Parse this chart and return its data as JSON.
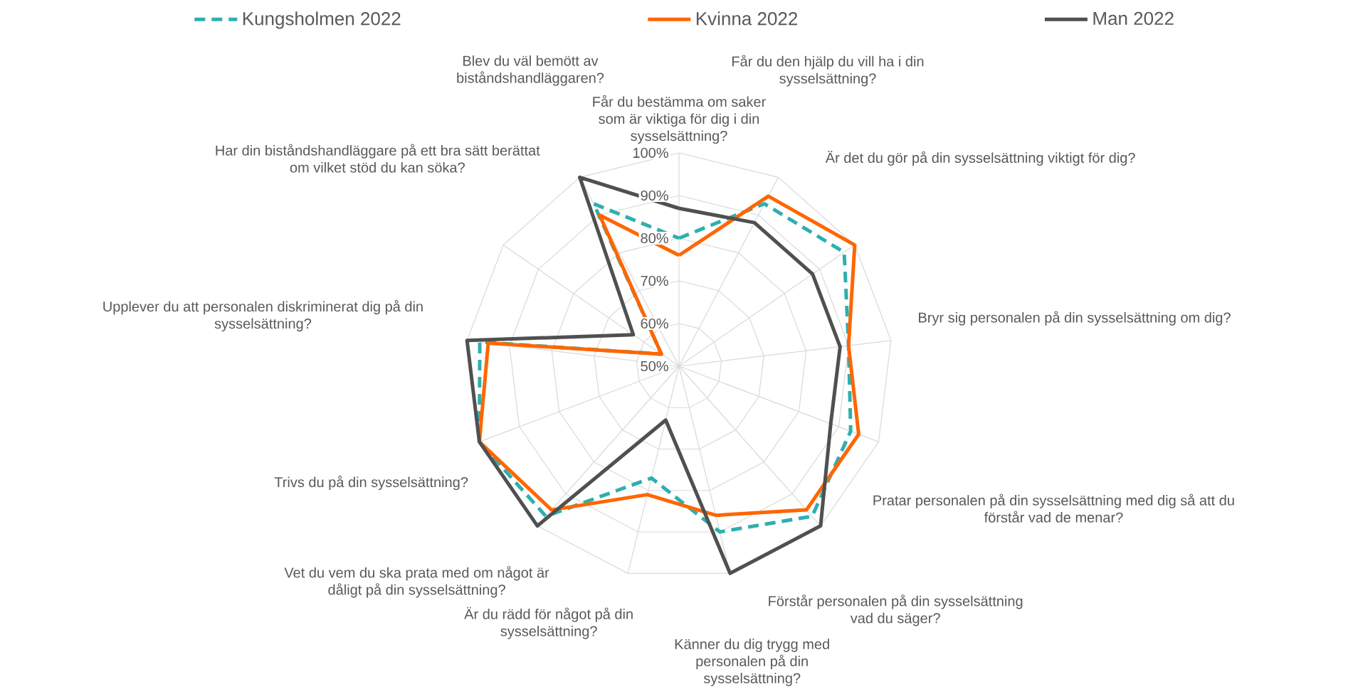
{
  "chart_data": {
    "type": "radar",
    "legend": "top",
    "grid": true,
    "ylim": [
      50,
      100
    ],
    "yticks": [
      {
        "value": 50,
        "label": "50%"
      },
      {
        "value": 60,
        "label": "60%"
      },
      {
        "value": 70,
        "label": "70%"
      },
      {
        "value": 80,
        "label": "80%"
      },
      {
        "value": 90,
        "label": "90%"
      },
      {
        "value": 100,
        "label": "100%"
      }
    ],
    "categories": [
      "Får du bestämma om saker som är viktiga för dig i din sysselsättning?",
      "Får du den hjälp du vill ha i din sysselsättning?",
      "Är det du gör på din sysselsättning viktigt för dig?",
      "Bryr sig personalen på din sysselsättning om dig?",
      "Pratar personalen på din sysselsättning med dig så att du förstår vad de menar?",
      "Förstår personalen på din sysselsättning vad du säger?",
      "Känner du dig trygg med personalen på din sysselsättning?",
      "Är du rädd för något på din sysselsättning?",
      "Vet du vem du ska prata med om något är dåligt på din sysselsättning?",
      "Trivs du på din sysselsättning?",
      "Upplever du att personalen diskriminerat dig på din sysselsättning?",
      "Har din biståndshandläggare på ett bra sätt berättat om vilket stöd du kan söka?",
      "Blev du väl bemött av biståndshandläggaren?"
    ],
    "series": [
      {
        "name": "Kungsholmen 2022",
        "color": "#2eafb0",
        "line_style": "dashed",
        "values": [
          80,
          93,
          97,
          90,
          93,
          97,
          90,
          77,
          97,
          100,
          97,
          55,
          93
        ]
      },
      {
        "name": "Kvinna 2022",
        "color": "#ff6600",
        "line_style": "solid",
        "values": [
          76,
          95,
          100,
          90,
          95,
          95,
          86,
          81,
          95,
          100,
          95,
          55,
          90
        ]
      },
      {
        "name": "Man 2022",
        "color": "#505050",
        "line_style": "solid",
        "values": [
          87,
          88,
          88,
          88,
          88,
          100,
          100,
          63,
          100,
          100,
          100,
          63,
          100
        ]
      }
    ]
  }
}
